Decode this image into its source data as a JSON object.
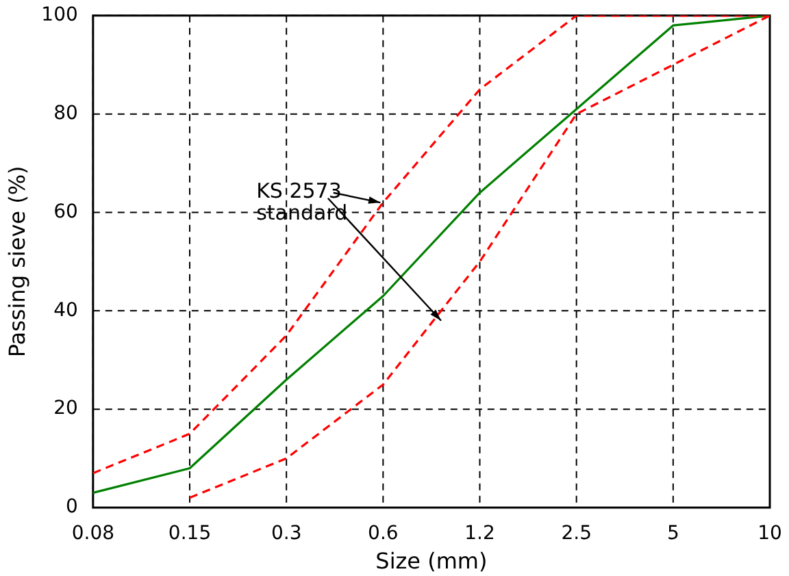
{
  "chart_data": {
    "type": "line",
    "xlabel": "Size (mm)",
    "ylabel": "Passing sieve (%)",
    "categories": [
      "0.08",
      "0.15",
      "0.3",
      "0.6",
      "1.2",
      "2.5",
      "5",
      "10"
    ],
    "ylim": [
      0,
      100
    ],
    "yticks": [
      0,
      20,
      40,
      60,
      80,
      100
    ],
    "grid": true,
    "series": [
      {
        "color": "#ff0000",
        "line_style": "dashed",
        "values": [
          7,
          15,
          35,
          62,
          85,
          100,
          100,
          100
        ]
      },
      {
        "color": "#ff0000",
        "line_style": "dashed",
        "values": [
          null,
          2,
          10,
          25,
          50,
          80,
          90,
          100
        ]
      },
      {
        "color": "#008000",
        "line_style": "solid",
        "values": [
          3,
          8,
          26,
          43,
          64,
          81,
          98,
          100
        ]
      }
    ],
    "annotations": [
      {
        "text": "KS 2573\nstandard",
        "x": "0.6",
        "y": 62
      }
    ]
  }
}
